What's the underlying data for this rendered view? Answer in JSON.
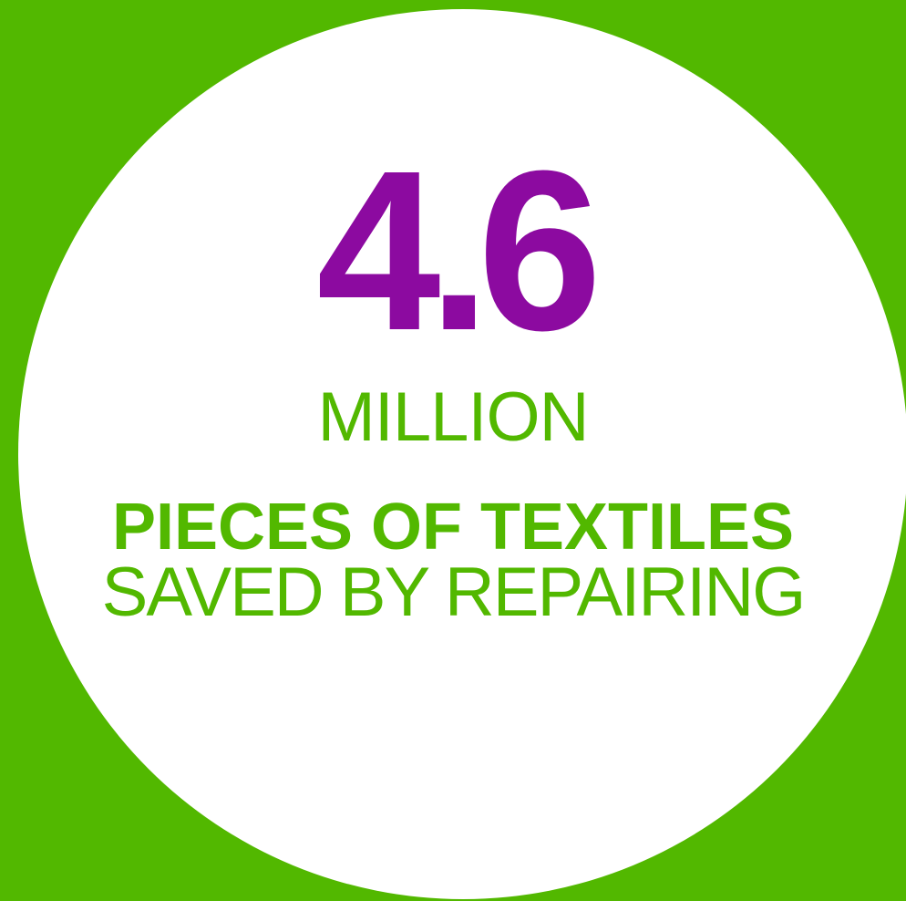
{
  "colors": {
    "background": "#52b800",
    "circle": "#ffffff",
    "number": "#8c0aa0",
    "text": "#52b800"
  },
  "stat": {
    "value": "4.6",
    "unit": "MILLION",
    "headline": "PIECES OF TEXTILES",
    "subline": "SAVED BY REPAIRING"
  }
}
